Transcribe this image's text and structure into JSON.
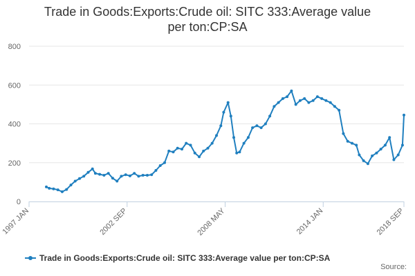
{
  "title_line1": "Trade in Goods:Exports:Crude oil: SITC 333:Average value",
  "title_line2": "per ton:CP:SA",
  "source_label": "Source:",
  "series_color": "#1f7fbf",
  "chart_data": {
    "type": "line",
    "title": "Trade in Goods:Exports:Crude oil: SITC 333:Average value per ton:CP:SA",
    "xlabel": "",
    "ylabel": "",
    "ylim": [
      0,
      800
    ],
    "y_ticks": [
      0,
      200,
      400,
      600,
      800
    ],
    "x_tick_labels": [
      "1997 JAN",
      "2002 SEP",
      "2008 MAY",
      "2014 JAN",
      "2018 SEP"
    ],
    "x_tick_dates": [
      "1997-01",
      "2002-09",
      "2008-05",
      "2014-01",
      "2018-09"
    ],
    "x_range": [
      "1997-01",
      "2018-09"
    ],
    "grid": true,
    "legend": "bottom",
    "series": [
      {
        "name": "Trade in Goods:Exports:Crude oil: SITC 333:Average value per ton:CP:SA",
        "x": [
          "1998-01",
          "1998-03",
          "1998-06",
          "1998-09",
          "1998-12",
          "1999-03",
          "1999-06",
          "1999-09",
          "1999-12",
          "2000-03",
          "2000-06",
          "2000-09",
          "2000-11",
          "2001-02",
          "2001-05",
          "2001-08",
          "2001-11",
          "2002-02",
          "2002-05",
          "2002-08",
          "2002-11",
          "2003-02",
          "2003-05",
          "2003-08",
          "2003-11",
          "2004-02",
          "2004-05",
          "2004-08",
          "2004-11",
          "2005-02",
          "2005-05",
          "2005-08",
          "2005-11",
          "2006-02",
          "2006-05",
          "2006-08",
          "2006-11",
          "2007-02",
          "2007-05",
          "2007-08",
          "2007-11",
          "2008-02",
          "2008-04",
          "2008-07",
          "2008-09",
          "2008-11",
          "2009-01",
          "2009-03",
          "2009-06",
          "2009-09",
          "2009-12",
          "2010-03",
          "2010-06",
          "2010-09",
          "2010-12",
          "2011-03",
          "2011-06",
          "2011-09",
          "2011-12",
          "2012-03",
          "2012-06",
          "2012-09",
          "2012-12",
          "2013-03",
          "2013-06",
          "2013-09",
          "2013-12",
          "2014-03",
          "2014-06",
          "2014-09",
          "2014-12",
          "2015-03",
          "2015-06",
          "2015-09",
          "2015-12",
          "2016-02",
          "2016-05",
          "2016-08",
          "2016-11",
          "2017-02",
          "2017-05",
          "2017-08",
          "2017-11",
          "2018-02",
          "2018-05",
          "2018-08",
          "2018-09"
        ],
        "values": [
          75,
          68,
          65,
          60,
          50,
          62,
          85,
          105,
          118,
          130,
          150,
          168,
          145,
          140,
          135,
          145,
          120,
          105,
          130,
          138,
          132,
          145,
          130,
          135,
          135,
          138,
          160,
          185,
          200,
          260,
          255,
          275,
          270,
          300,
          290,
          250,
          230,
          260,
          275,
          300,
          340,
          390,
          460,
          510,
          440,
          330,
          250,
          255,
          300,
          330,
          380,
          390,
          380,
          400,
          440,
          490,
          510,
          530,
          540,
          570,
          500,
          520,
          530,
          510,
          520,
          540,
          530,
          520,
          510,
          490,
          470,
          350,
          310,
          300,
          290,
          240,
          210,
          195,
          235,
          250,
          270,
          290,
          330,
          215,
          240,
          290,
          445
        ]
      }
    ]
  }
}
